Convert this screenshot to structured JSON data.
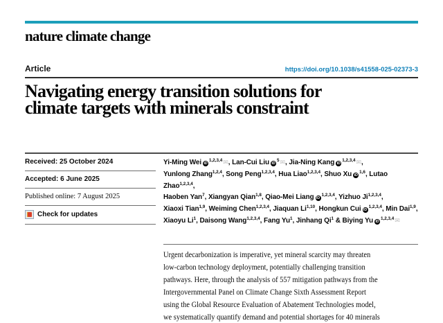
{
  "page": {
    "accent_teal": "#1d9fba",
    "link_blue": "#0c7fb8"
  },
  "masthead": {
    "title": "nature climate change"
  },
  "header": {
    "section_label": "Article",
    "doi": "https://doi.org/10.1038/s41558-025-02373-3"
  },
  "title": {
    "line1": "Navigating energy transition solutions for",
    "line2": "climate targets with minerals constraint"
  },
  "meta": {
    "received": "Received: 25 October 2024",
    "accepted": "Accepted: 6 June 2025",
    "published_online": "Published online: 7 August 2025",
    "check_updates_label": "Check for updates"
  },
  "authors": [
    {
      "name": "Yi-Ming Wei",
      "orcid": true,
      "sup": "1,2,3,4",
      "email": true,
      "sep": ", "
    },
    {
      "name": "Lan-Cui Liu",
      "orcid": true,
      "sup": "5",
      "email": true,
      "sep": ", "
    },
    {
      "name": "Jia-Ning Kang",
      "orcid": true,
      "sup": "1,2,3,4",
      "email": true,
      "sep": ",",
      "break_after": true
    },
    {
      "name": "Yunlong Zhang",
      "orcid": false,
      "sup": "1,2,4",
      "email": false,
      "sep": ", "
    },
    {
      "name": "Song Peng",
      "orcid": false,
      "sup": "1,2,3,4",
      "email": false,
      "sep": ", "
    },
    {
      "name": "Hua Liao",
      "orcid": false,
      "sup": "1,2,3,4",
      "email": false,
      "sep": ", "
    },
    {
      "name": "Shuo Xu",
      "orcid": true,
      "sup": "1,6",
      "email": false,
      "sep": ", "
    },
    {
      "name": "Lutao Zhao",
      "orcid": false,
      "sup": "1,2,3,4",
      "email": false,
      "sep": ",",
      "break_after": true
    },
    {
      "name": "Haoben Yan",
      "orcid": false,
      "sup": "7",
      "email": false,
      "sep": ", "
    },
    {
      "name": "Xiangyan Qian",
      "orcid": false,
      "sup": "1,8",
      "email": false,
      "sep": ", "
    },
    {
      "name": "Qiao-Mei Liang",
      "orcid": true,
      "sup": "1,2,3,4",
      "email": false,
      "sep": ", "
    },
    {
      "name": "Yizhuo Ji",
      "orcid": false,
      "sup": "1,2,3,4",
      "email": false,
      "sep": ",",
      "break_after": true
    },
    {
      "name": "Xiaoxi Tian",
      "orcid": false,
      "sup": "1,9",
      "email": false,
      "sep": ", "
    },
    {
      "name": "Weiming Chen",
      "orcid": false,
      "sup": "1,2,3,4",
      "email": false,
      "sep": ", "
    },
    {
      "name": "Jiaquan Li",
      "orcid": false,
      "sup": "1,10",
      "email": false,
      "sep": ", "
    },
    {
      "name": "Hongkun Cui",
      "orcid": true,
      "sup": "1,2,3,4",
      "email": false,
      "sep": ", "
    },
    {
      "name": "Min Dai",
      "orcid": false,
      "sup": "1,9",
      "email": false,
      "sep": ",",
      "break_after": true
    },
    {
      "name": "Xiaoyu Li",
      "orcid": false,
      "sup": "1",
      "email": false,
      "sep": ", "
    },
    {
      "name": "Daisong Wang",
      "orcid": false,
      "sup": "1,2,3,4",
      "email": false,
      "sep": ", "
    },
    {
      "name": "Fang Yu",
      "orcid": false,
      "sup": "1",
      "email": false,
      "sep": ", "
    },
    {
      "name": "Jinhang Qi",
      "orcid": false,
      "sup": "1",
      "email": false,
      "sep": " & "
    },
    {
      "name": "Biying Yu",
      "orcid": true,
      "sup": "1,2,3,4",
      "email": true,
      "sep": ""
    }
  ],
  "abstract": {
    "lines": [
      "Urgent decarbonization is imperative, yet mineral scarcity may threaten",
      "low-carbon technology deployment, potentially challenging transition",
      "pathways. Here, through the analysis of 557 mitigation pathways from the",
      "Intergovernmental Panel on Climate Change Sixth Assessment Report",
      "using the Global Resource Evaluation of Abatement Technologies model,",
      "we systematically quantify demand and potential shortages for 40 minerals"
    ]
  }
}
